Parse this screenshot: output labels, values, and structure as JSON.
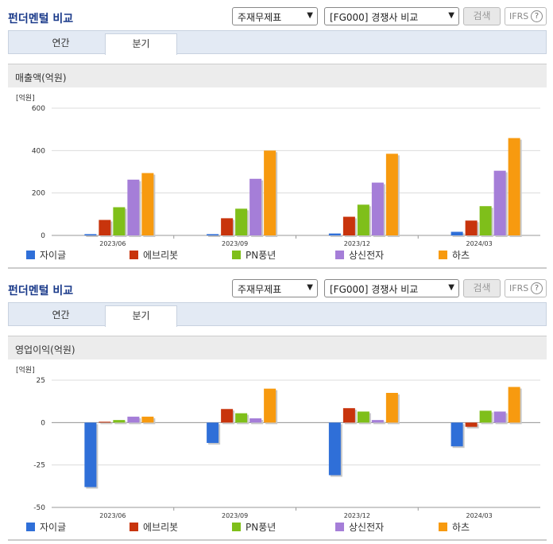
{
  "panels": [
    {
      "title": "펀더멘털 비교",
      "select_statement": "주재무제표",
      "select_compare": "[FG000] 경쟁사 비교",
      "search_label": "검색",
      "ifrs_label": "IFRS",
      "help_glyph": "?",
      "tabs": [
        "연간",
        "분기"
      ],
      "active_tab": "분기",
      "subtitle": "매출액(억원)"
    },
    {
      "title": "펀더멘털 비교",
      "select_statement": "주재무제표",
      "select_compare": "[FG000] 경쟁사 비교",
      "search_label": "검색",
      "ifrs_label": "IFRS",
      "help_glyph": "?",
      "tabs": [
        "연간",
        "분기"
      ],
      "active_tab": "분기",
      "subtitle": "영업이익(억원)"
    }
  ],
  "colors": {
    "자이글": "#2f6fd8",
    "에브리봇": "#c8340c",
    "PN풍년": "#7fbf1a",
    "상신전자": "#a57ed8",
    "하츠": "#f79a0f"
  },
  "chart_data": [
    {
      "type": "bar",
      "unit_label": "[억원]",
      "categories": [
        "2023/06",
        "2023/09",
        "2023/12",
        "2024/03"
      ],
      "ylim": [
        0,
        600
      ],
      "yticks": [
        0,
        200,
        400,
        600
      ],
      "legend_placement": "bottom",
      "series": [
        {
          "name": "자이글",
          "values": [
            6,
            6,
            9,
            17
          ]
        },
        {
          "name": "에브리봇",
          "values": [
            73,
            81,
            88,
            70
          ]
        },
        {
          "name": "PN풍년",
          "values": [
            133,
            126,
            145,
            138
          ]
        },
        {
          "name": "상신전자",
          "values": [
            263,
            267,
            249,
            305
          ]
        },
        {
          "name": "하츠",
          "values": [
            294,
            400,
            385,
            459
          ]
        }
      ]
    },
    {
      "type": "bar",
      "unit_label": "[억원]",
      "categories": [
        "2023/06",
        "2023/09",
        "2023/12",
        "2024/03"
      ],
      "ylim": [
        -50,
        25
      ],
      "yticks": [
        -50,
        -25,
        0,
        25
      ],
      "legend_placement": "bottom",
      "series": [
        {
          "name": "자이글",
          "values": [
            -38,
            -12,
            -31,
            -14
          ]
        },
        {
          "name": "에브리봇",
          "values": [
            0.5,
            8,
            8.5,
            -2.5
          ]
        },
        {
          "name": "PN풍년",
          "values": [
            1.5,
            5.5,
            6.5,
            7
          ]
        },
        {
          "name": "상신전자",
          "values": [
            3.5,
            2.5,
            1.5,
            6.5
          ]
        },
        {
          "name": "하츠",
          "values": [
            3.5,
            20,
            17.5,
            21
          ]
        }
      ]
    }
  ]
}
